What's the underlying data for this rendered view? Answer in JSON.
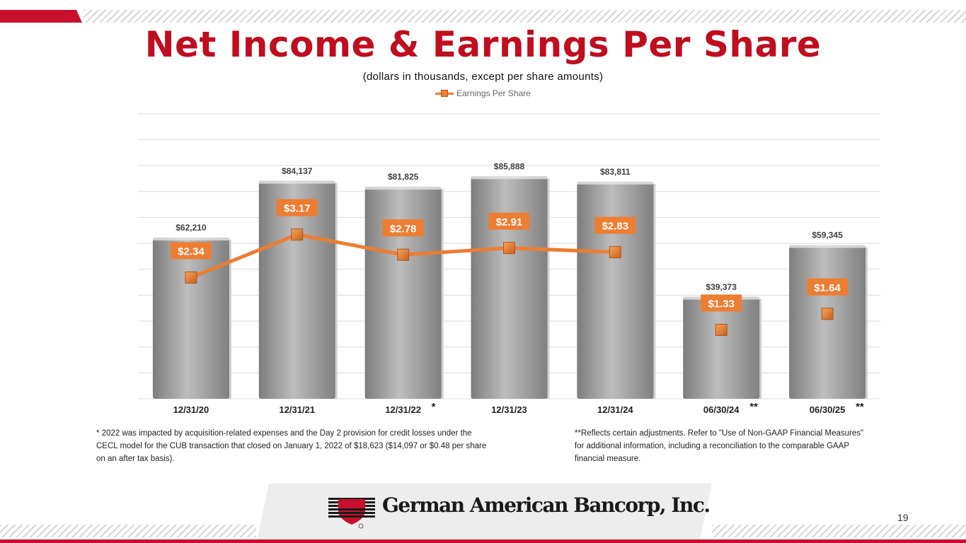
{
  "slide": {
    "title": "Net Income & Earnings Per Share",
    "subtitle": "(dollars in thousands, except per share amounts)",
    "page_number": "19",
    "footnote_left": "* 2022 was impacted by acquisition-related expenses and the Day 2 provision for credit losses under the CECL model for the CUB transaction that closed on January 1, 2022 of $18,623 ($14,097 or $0.48 per share on an after tax basis).",
    "footnote_right": "**Reflects certain adjustments. Refer to \"Use of Non-GAAP Financial Measures\" for additional information, including a reconciliation to the comparable GAAP financial measure.",
    "company_name": "German American Bancorp, Inc."
  },
  "colors": {
    "title": "#c00e1f",
    "bar": "#9a9a9a",
    "line": "#ed7d31",
    "brand_red": "#c8102e"
  },
  "chart_data": {
    "type": "bar",
    "categories": [
      "12/31/20",
      "12/31/21",
      "12/31/22",
      "12/31/23",
      "12/31/24",
      "06/30/24",
      "06/30/25"
    ],
    "category_marks": [
      "",
      "",
      "*",
      "",
      "",
      "**",
      "**"
    ],
    "legend": [
      "Earnings Per Share"
    ],
    "legend_position": "top-center",
    "grid": true,
    "series": [
      {
        "name": "Net Income",
        "kind": "bar",
        "values": [
          62210,
          84137,
          81825,
          85888,
          83811,
          39373,
          59345
        ],
        "labels": [
          "$62,210",
          "$84,137",
          "$81,825",
          "$85,888",
          "$83,811",
          "$39,373",
          "$59,345"
        ],
        "ylim": [
          0,
          110000
        ]
      },
      {
        "name": "Earnings Per Share",
        "kind": "line",
        "values": [
          2.34,
          3.17,
          2.78,
          2.91,
          2.83,
          1.33,
          1.64
        ],
        "labels": [
          "$2.34",
          "$3.17",
          "$2.78",
          "$2.91",
          "$2.83",
          "$1.33",
          "$1.64"
        ],
        "connected_points": 5,
        "ylim": [
          0,
          5.5
        ]
      }
    ]
  }
}
